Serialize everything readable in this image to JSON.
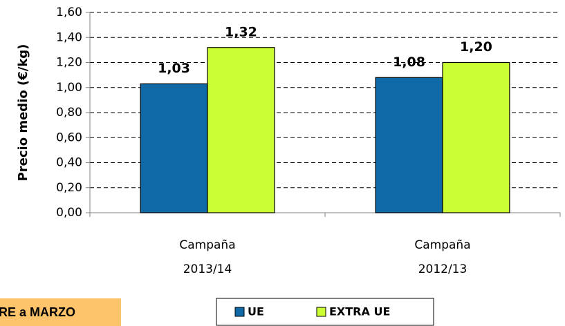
{
  "chart_data": {
    "type": "bar",
    "categories": [
      [
        "Campaña",
        "2013/14"
      ],
      [
        "Campaña",
        "2012/13"
      ]
    ],
    "series": [
      {
        "name": "UE",
        "color": "#0f69a6",
        "values": [
          1.03,
          1.08
        ],
        "value_labels": [
          "1,03",
          "1,08"
        ]
      },
      {
        "name": "EXTRA UE",
        "color": "#ccff33",
        "values": [
          1.32,
          1.2
        ],
        "value_labels": [
          "1,32",
          "1,20"
        ]
      }
    ],
    "ylabel": "Precio medio (€/kg)",
    "ylim": [
      0,
      1.6
    ],
    "yticks": [
      {
        "value": 0,
        "label": "0,00"
      },
      {
        "value": 0.2,
        "label": "0,20"
      },
      {
        "value": 0.4,
        "label": "0,40"
      },
      {
        "value": 0.6,
        "label": "0,60"
      },
      {
        "value": 0.8,
        "label": "0,80"
      },
      {
        "value": 1.0,
        "label": "1,00"
      },
      {
        "value": 1.2,
        "label": "1,20"
      },
      {
        "value": 1.4,
        "label": "1,40"
      },
      {
        "value": 1.6,
        "label": "1,60"
      }
    ],
    "grid": true,
    "legend": "bottom",
    "annotation": "RE a MARZO"
  }
}
